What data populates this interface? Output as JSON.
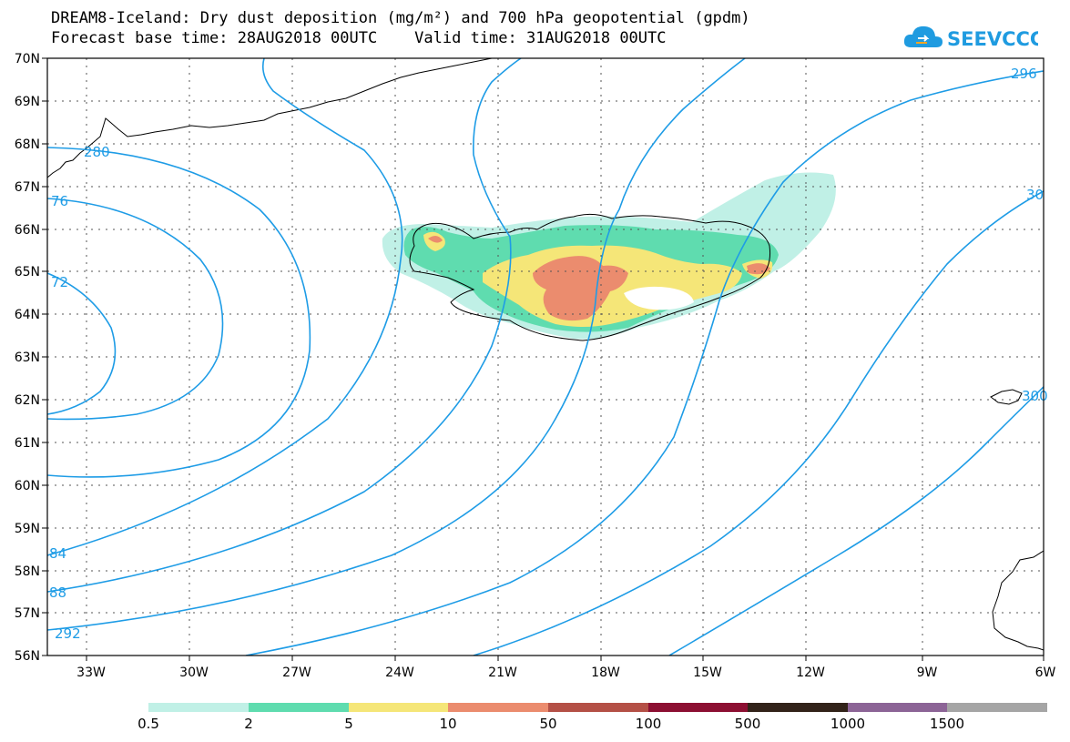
{
  "title": {
    "line1": "DREAM8-Iceland: Dry dust deposition (mg/m²) and 700 hPa geopotential (gpdm)",
    "line2": "Forecast base time: 28AUG2018 00UTC    Valid time: 31AUG2018 00UTC"
  },
  "logo": {
    "text": "SEEVCCC",
    "color": "#1f9be0",
    "icon": "cloud-icon"
  },
  "map": {
    "lon_ticks": [
      "33W",
      "30W",
      "27W",
      "24W",
      "21W",
      "18W",
      "15W",
      "12W",
      "9W",
      "6W"
    ],
    "lat_ticks": [
      "70N",
      "69N",
      "68N",
      "67N",
      "66N",
      "65N",
      "64N",
      "63N",
      "62N",
      "61N",
      "60N",
      "59N",
      "58N",
      "57N",
      "56N"
    ],
    "contour_color": "#1e9ce6",
    "contour_labels": [
      "280",
      "76",
      "72",
      "84",
      "88",
      "292",
      "296",
      "30",
      "300"
    ]
  },
  "legend": {
    "colors": [
      "#c0f0e6",
      "#5fdcaf",
      "#f5e678",
      "#eb8c6e",
      "#b45046",
      "#8c0f32",
      "#322319",
      "#8c6496",
      "#a5a5a5"
    ],
    "labels": [
      "0.5",
      "2",
      "5",
      "10",
      "50",
      "100",
      "500",
      "1000",
      "1500"
    ]
  }
}
